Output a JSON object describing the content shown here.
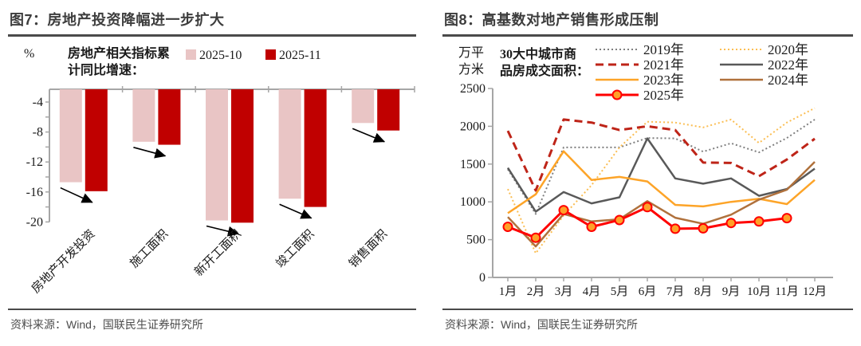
{
  "figure7": {
    "title": "图7：房地产投资降幅进一步扩大",
    "source": "资料来源：Wind，国联民生证券研究所"
  },
  "figure8": {
    "title": "图8：高基数对地产销售形成压制",
    "source": "资料来源：Wind，国联民生证券研究所"
  },
  "chart_data": [
    {
      "id": "figure7",
      "type": "bar",
      "title": "图7：房地产投资降幅进一步扩大",
      "unit_label": "%",
      "note_lines": [
        "房地产相关指标累",
        "计同比增速："
      ],
      "categories": [
        "房地产开发投资",
        "施工面积",
        "新开工面积",
        "竣工面积",
        "销售面积"
      ],
      "series": [
        {
          "name": "2025-10",
          "color": "#E9C5C5",
          "values": [
            -14.7,
            -9.3,
            -19.8,
            -16.9,
            -6.8
          ]
        },
        {
          "name": "2025-11",
          "color": "#C00000",
          "values": [
            -15.9,
            -9.7,
            -20.1,
            -18.0,
            -7.8
          ]
        }
      ],
      "ylabel": "%",
      "ylim": [
        -20.5,
        -2.3
      ],
      "yticks": [
        -4,
        -8,
        -12,
        -16,
        -20
      ],
      "grid": false,
      "legend_position": "top",
      "annotation": "黑色箭头：各指标由2025-10降至2025-11，降幅扩大"
    },
    {
      "id": "figure8",
      "type": "line",
      "title": "图8：高基数对地产销售形成压制",
      "unit_lines": [
        "万平",
        "方米"
      ],
      "ylabel": "万平方米",
      "note_lines": [
        "30大中城市商",
        "品房成交面积："
      ],
      "x": [
        "1月",
        "2月",
        "3月",
        "4月",
        "5月",
        "6月",
        "7月",
        "8月",
        "9月",
        "10月",
        "11月",
        "12月"
      ],
      "ylim": [
        0,
        2500
      ],
      "yticks": [
        0,
        500,
        1000,
        1500,
        2000,
        2500
      ],
      "grid": false,
      "legend_position": "top-two-columns",
      "series": [
        {
          "name": "2019年",
          "color": "#7F7F7F",
          "dash": "2 3",
          "width": 2,
          "marker": false,
          "legend": {
            "col": 0,
            "row": 0
          },
          "values": [
            1430,
            840,
            1720,
            1720,
            1720,
            1845,
            1840,
            1665,
            1775,
            1655,
            1845,
            2090
          ]
        },
        {
          "name": "2020年",
          "color": "#FBBE53",
          "dash": "2 3",
          "width": 2,
          "marker": false,
          "legend": {
            "col": 1,
            "row": 0
          },
          "values": [
            1170,
            320,
            820,
            1220,
            1720,
            2060,
            2050,
            1985,
            2090,
            1780,
            2050,
            2240
          ]
        },
        {
          "name": "2021年",
          "color": "#BE2418",
          "dash": "10 6",
          "width": 3,
          "marker": false,
          "legend": {
            "col": 0,
            "row": 1
          },
          "values": [
            1940,
            1150,
            2090,
            2050,
            1950,
            2000,
            1950,
            1520,
            1515,
            1340,
            1560,
            1835
          ]
        },
        {
          "name": "2022年",
          "color": "#595959",
          "dash": null,
          "width": 2.5,
          "marker": false,
          "legend": {
            "col": 1,
            "row": 1
          },
          "values": [
            1450,
            870,
            1130,
            980,
            1060,
            1840,
            1310,
            1240,
            1310,
            1080,
            1170,
            1440
          ]
        },
        {
          "name": "2023年",
          "color": "#FDA428",
          "dash": null,
          "width": 2.5,
          "marker": false,
          "legend": {
            "col": 0,
            "row": 2
          },
          "values": [
            850,
            1100,
            1670,
            1290,
            1330,
            1270,
            960,
            940,
            1000,
            1040,
            970,
            1290
          ]
        },
        {
          "name": "2024年",
          "color": "#B0713C",
          "dash": null,
          "width": 2.5,
          "marker": false,
          "legend": {
            "col": 1,
            "row": 2
          },
          "values": [
            800,
            410,
            840,
            740,
            770,
            1010,
            790,
            710,
            830,
            1030,
            1160,
            1530
          ]
        },
        {
          "name": "2025年",
          "color": "#FF0000",
          "dash": null,
          "width": 3,
          "marker": true,
          "marker_fill": "#FFA028",
          "marker_stroke": "#FF0000",
          "legend": {
            "col": 0,
            "row": 3
          },
          "values": [
            670,
            525,
            890,
            670,
            760,
            930,
            645,
            650,
            720,
            740,
            785
          ]
        }
      ]
    }
  ]
}
